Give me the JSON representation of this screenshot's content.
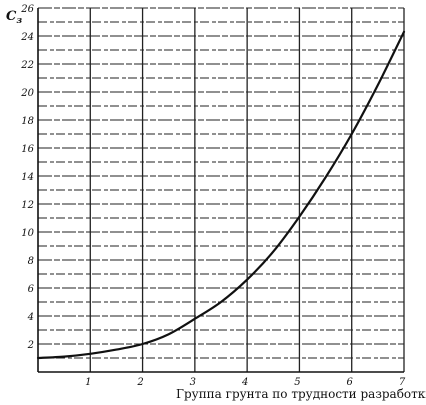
{
  "chart_data": {
    "type": "line",
    "title": "",
    "xlabel": "Группа грунта по трудности разработки",
    "ylabel": "C",
    "ylabel_subscript": "з",
    "xlim": [
      0,
      7
    ],
    "ylim": [
      0,
      26
    ],
    "x_ticks": [
      1,
      2,
      3,
      4,
      5,
      6,
      7
    ],
    "y_ticks": [
      2,
      4,
      6,
      8,
      10,
      12,
      14,
      16,
      18,
      20,
      22,
      24,
      26
    ],
    "y_tick_labels": [
      "2",
      "4",
      "6",
      "8",
      "10",
      "12",
      "14",
      "16",
      "18",
      "20",
      "22",
      "24",
      "26"
    ],
    "x_tick_labels": [
      "1",
      "2",
      "3",
      "4",
      "5",
      "6",
      "7"
    ],
    "grid": true,
    "series": [
      {
        "values_x": [
          0,
          0.5,
          1,
          1.5,
          2,
          2.5,
          3,
          3.5,
          4,
          4.5,
          5,
          5.5,
          6,
          6.5,
          7
        ],
        "values_y": [
          1.0,
          1.1,
          1.3,
          1.6,
          2.0,
          2.7,
          3.8,
          5.0,
          6.6,
          8.6,
          11.1,
          13.9,
          17.0,
          20.5,
          24.3
        ]
      }
    ],
    "colors": {
      "line": "#111111",
      "grid": "#222222",
      "background": "#ffffff"
    }
  }
}
